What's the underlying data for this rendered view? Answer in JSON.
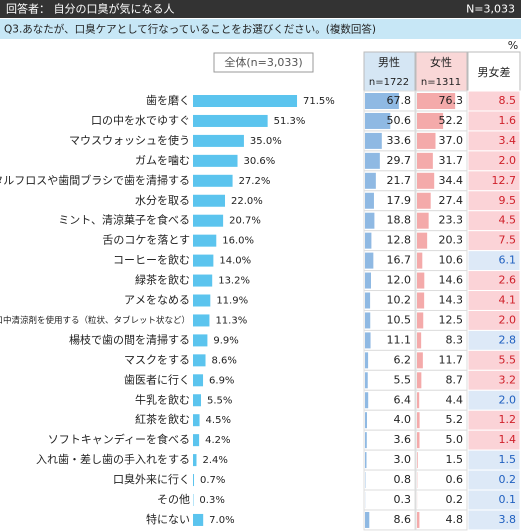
{
  "header": {
    "respondents": "回答者： 自分の口臭が気になる人",
    "n": "N=3,033"
  },
  "question": "Q3.あなたが、口臭ケアとして行なっていることをお選びください。(複数回答)",
  "unit": "%",
  "chart_data": {
    "type": "bar",
    "orientation": "horizontal",
    "legend_label": "全体(n=3,033)",
    "color": "#5bc4ee",
    "categories": [
      "歯を磨く",
      "口の中を水でゆすぐ",
      "マウスウォッシュを使う",
      "ガムを噛む",
      "デンタルフロスや歯間ブラシで歯を清掃する",
      "水分を取る",
      "ミント、清涼菓子を食べる",
      "舌のコケを落とす",
      "コーヒーを飲む",
      "緑茶を飲む",
      "アメをなめる",
      "口中清涼剤を使用する（粒状、タブレット状など）",
      "楊枝で歯の間を清掃する",
      "マスクをする",
      "歯医者に行く",
      "牛乳を飲む",
      "紅茶を飲む",
      "ソフトキャンディーを食べる",
      "入れ歯・差し歯の手入れをする",
      "口臭外来に行く",
      "その他",
      "特にない"
    ],
    "values": [
      71.5,
      51.3,
      35.0,
      30.6,
      27.2,
      22.0,
      20.7,
      16.0,
      14.0,
      13.2,
      11.9,
      11.3,
      9.9,
      8.6,
      6.9,
      5.5,
      4.5,
      4.2,
      2.4,
      0.7,
      0.3,
      7.0
    ],
    "value_labels": [
      "71.5%",
      "51.3%",
      "35.0%",
      "30.6%",
      "27.2%",
      "22.0%",
      "20.7%",
      "16.0%",
      "14.0%",
      "13.2%",
      "11.9%",
      "11.3%",
      "9.9%",
      "8.6%",
      "6.9%",
      "5.5%",
      "4.5%",
      "4.2%",
      "2.4%",
      "0.7%",
      "0.3%",
      "7.0%"
    ]
  },
  "table": {
    "columns": [
      {
        "name": "男性",
        "n": "n=1722",
        "color": "#8fb9e3",
        "header_color": "#d5e6f4",
        "values": [
          67.8,
          50.6,
          33.6,
          29.7,
          21.7,
          17.9,
          18.8,
          12.8,
          16.7,
          12.0,
          10.2,
          10.5,
          11.1,
          6.2,
          5.5,
          6.4,
          4.0,
          3.6,
          3.0,
          0.8,
          0.3,
          8.6
        ],
        "value_labels": [
          "67.8",
          "50.6",
          "33.6",
          "29.7",
          "21.7",
          "17.9",
          "18.8",
          "12.8",
          "16.7",
          "12.0",
          "10.2",
          "10.5",
          "11.1",
          "6.2",
          "5.5",
          "6.4",
          "4.0",
          "3.6",
          "3.0",
          "0.8",
          "0.3",
          "8.6"
        ]
      },
      {
        "name": "女性",
        "n": "n=1311",
        "color": "#f4aaaa",
        "header_color": "#f9d7d7",
        "values": [
          76.3,
          52.2,
          37.0,
          31.7,
          34.4,
          27.4,
          23.3,
          20.3,
          10.6,
          14.6,
          14.3,
          12.5,
          8.3,
          11.7,
          8.7,
          4.4,
          5.2,
          5.0,
          1.5,
          0.6,
          0.2,
          4.8
        ],
        "value_labels": [
          "76.3",
          "52.2",
          "37.0",
          "31.7",
          "34.4",
          "27.4",
          "23.3",
          "20.3",
          "10.6",
          "14.6",
          "14.3",
          "12.5",
          "8.3",
          "11.7",
          "8.7",
          "4.4",
          "5.2",
          "5.0",
          "1.5",
          "0.6",
          "0.2",
          "4.8"
        ]
      },
      {
        "name": "男女差",
        "values": [
          8.5,
          1.6,
          3.4,
          2.0,
          12.7,
          9.5,
          4.5,
          7.5,
          6.1,
          2.6,
          4.1,
          2.0,
          2.8,
          5.5,
          3.2,
          2.0,
          1.2,
          1.4,
          1.5,
          0.2,
          0.1,
          3.8
        ],
        "value_labels": [
          "8.5",
          "1.6",
          "3.4",
          "2.0",
          "12.7",
          "9.5",
          "4.5",
          "7.5",
          "6.1",
          "2.6",
          "4.1",
          "2.0",
          "2.8",
          "5.5",
          "3.2",
          "2.0",
          "1.2",
          "1.4",
          "1.5",
          "0.2",
          "0.1",
          "3.8"
        ]
      }
    ]
  }
}
